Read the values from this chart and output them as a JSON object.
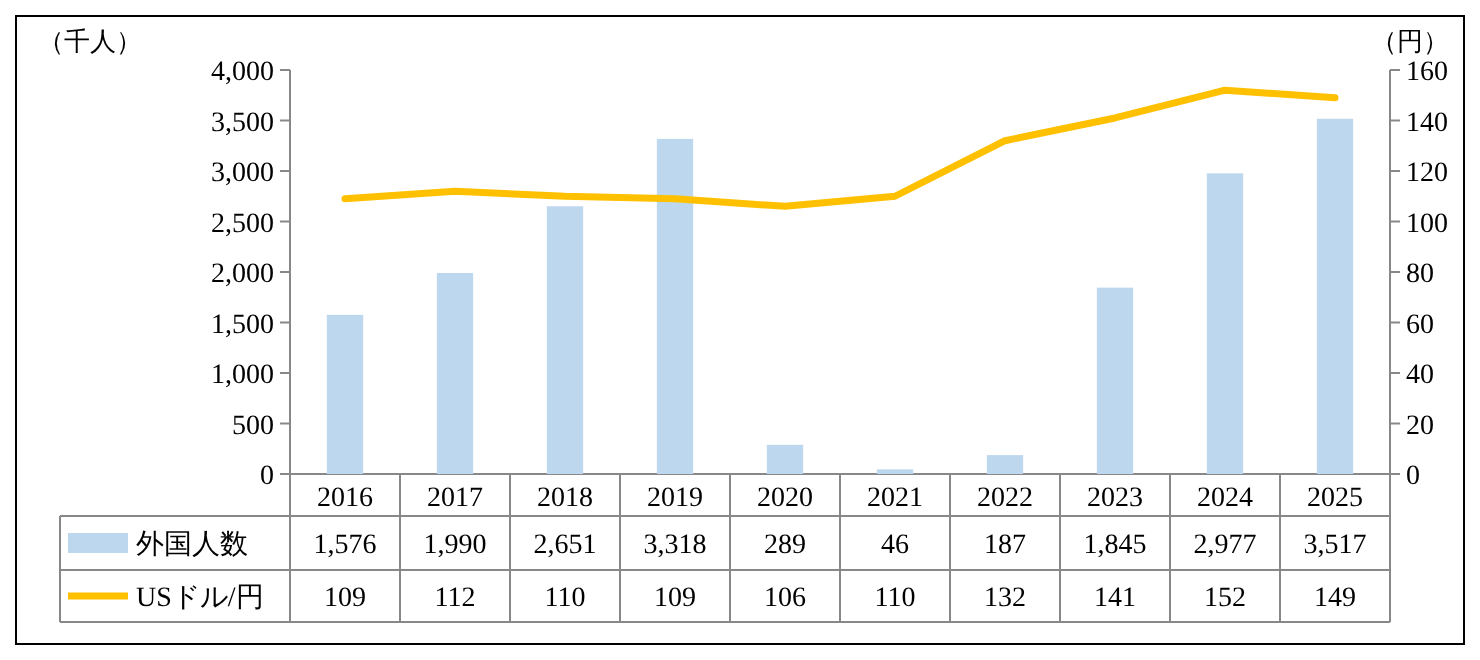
{
  "chart_data": {
    "type": "bar",
    "ylabel": "（千人）",
    "y2label": "（円）",
    "categories": [
      "2016",
      "2017",
      "2018",
      "2019",
      "2020",
      "2021",
      "2022",
      "2023",
      "2024",
      "2025"
    ],
    "series": [
      {
        "name": "外国人数",
        "color": "#bdd7ee",
        "values": [
          1576,
          1990,
          2651,
          3318,
          289,
          46,
          187,
          1845,
          2977,
          3517
        ],
        "value_labels": [
          "1,576",
          "1,990",
          "2,651",
          "3,318",
          "289",
          "46",
          "187",
          "1,845",
          "2,977",
          "3,517"
        ]
      },
      {
        "name": "USドル/円",
        "type": "line",
        "axis": "y2",
        "color": "#ffc000",
        "values": [
          109,
          112,
          110,
          109,
          106,
          110,
          132,
          141,
          152,
          149
        ],
        "value_labels": [
          "109",
          "112",
          "110",
          "109",
          "106",
          "110",
          "132",
          "141",
          "152",
          "149"
        ]
      }
    ],
    "ylim": [
      0,
      4000
    ],
    "yticks": [
      0,
      500,
      {
        "value": 1000,
        "label": "1,000"
      },
      {
        "value": 1500,
        "label": "1,500"
      },
      {
        "value": 2000,
        "label": "2,000"
      },
      {
        "value": 2500,
        "label": "2,500"
      },
      {
        "value": 3000,
        "label": "3,000"
      },
      {
        "value": 3500,
        "label": "3,500"
      },
      {
        "value": 4000,
        "label": "4,000"
      }
    ],
    "y2lim": [
      0,
      160
    ],
    "y2ticks": [
      0,
      20,
      40,
      60,
      80,
      100,
      120,
      140,
      160
    ],
    "legend": "bottom"
  }
}
